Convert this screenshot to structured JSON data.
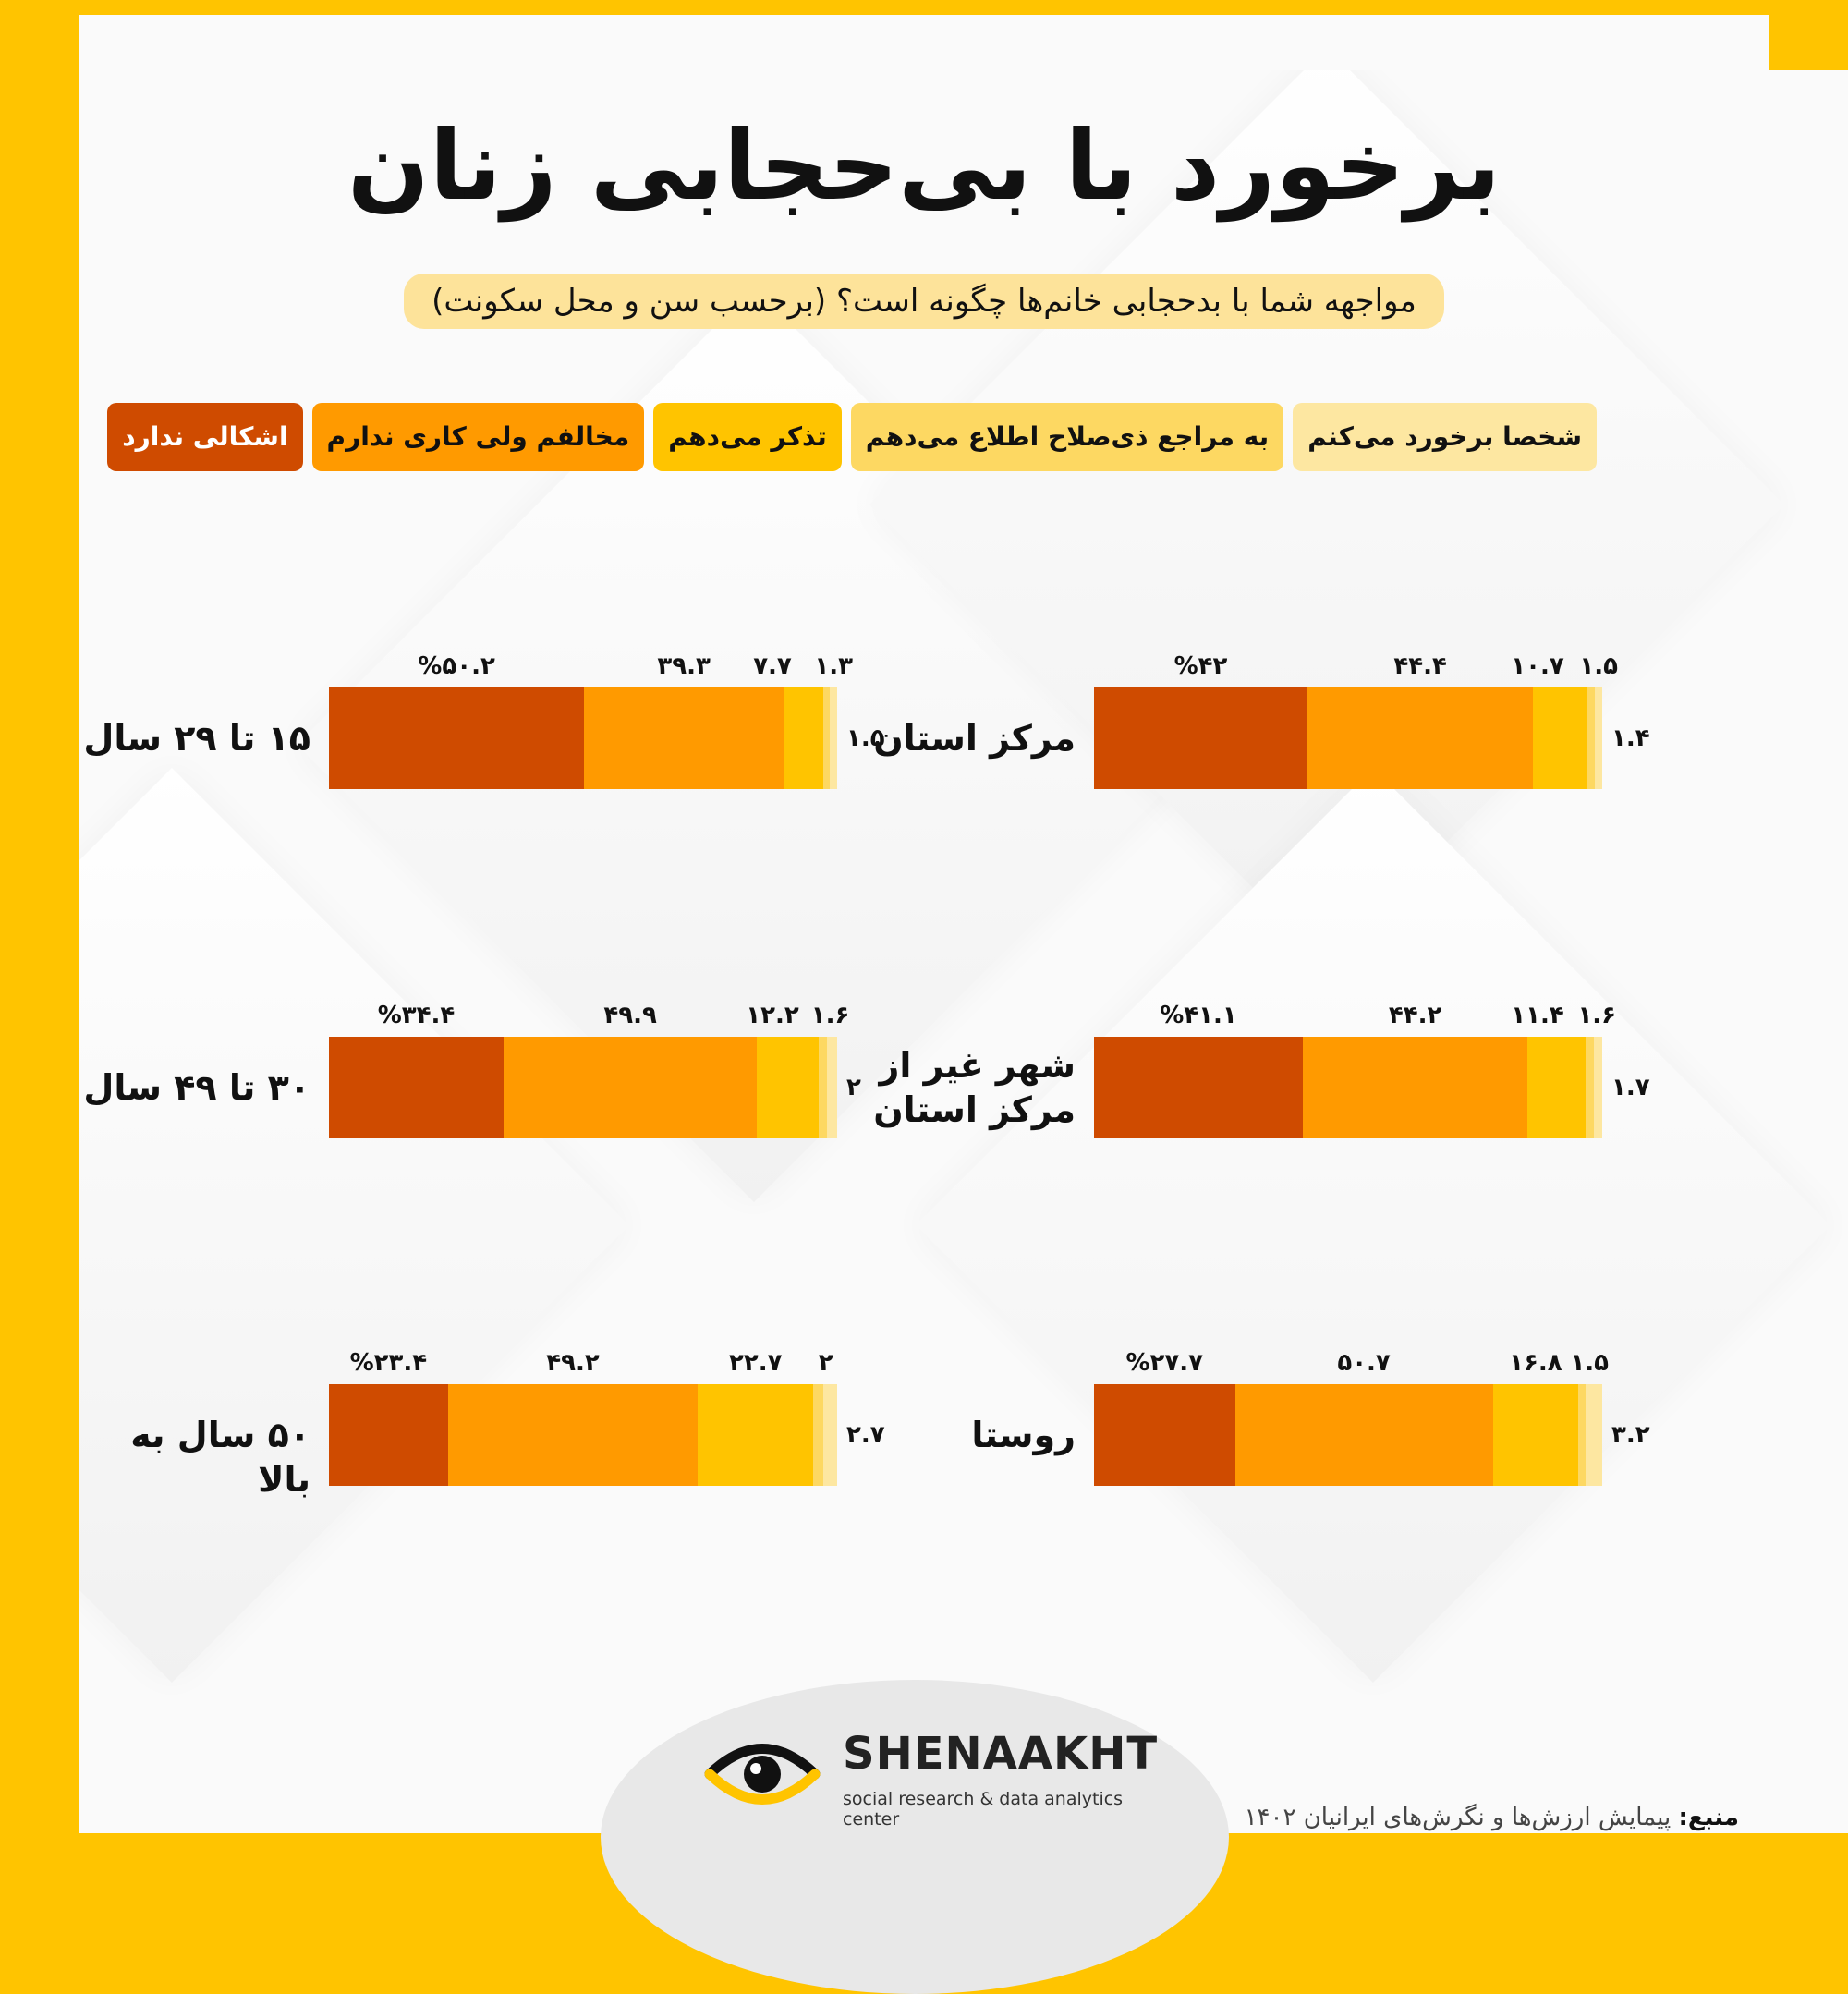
{
  "title": "برخورد با بی‌حجابی زنان",
  "subtitle": "مواجهه شما با بدحجابی خانم‌ها چگونه است؟ (برحسب سن و محل سکونت)",
  "colors": {
    "c0": "#fde7a1",
    "c1": "#fdd862",
    "c2": "#ffc400",
    "c3": "#ff9a00",
    "c4": "#cf4b00"
  },
  "legend": [
    {
      "label": "شخصا برخورد می‌کنم",
      "color": "#fde7a1"
    },
    {
      "label": "به مراجع ذی‌صلاح اطلاع می‌دهم",
      "color": "#fdd862"
    },
    {
      "label": "تذکر می‌دهم",
      "color": "#ffc400"
    },
    {
      "label": "مخالفم ولی کاری ندارم",
      "color": "#ff9a00"
    },
    {
      "label": "اشکالی ندارد",
      "color": "#cf4b00"
    }
  ],
  "chart_data": {
    "type": "bar",
    "stacked": true,
    "orientation": "horizontal",
    "series_names": [
      "اشکالی ندارد",
      "مخالفم ولی کاری ندارم",
      "تذکر می‌دهم",
      "به مراجع ذی‌صلاح اطلاع می‌دهم",
      "شخصا برخورد می‌کنم"
    ],
    "groups": [
      {
        "category": "مرکز استان",
        "values": [
          42,
          44.4,
          10.7,
          1.5,
          1.4
        ],
        "labels": [
          "%۴۲",
          "۴۴.۴",
          "۱۰.۷",
          "۱.۵",
          "۱.۴"
        ]
      },
      {
        "category": "شهر غیر از\nمرکز استان",
        "values": [
          41.1,
          44.2,
          11.4,
          1.6,
          1.7
        ],
        "labels": [
          "%۴۱.۱",
          "۴۴.۲",
          "۱۱.۴",
          "۱.۶",
          "۱.۷"
        ]
      },
      {
        "category": "روستا",
        "values": [
          27.7,
          50.7,
          16.8,
          1.5,
          3.2
        ],
        "labels": [
          "%۲۷.۷",
          "۵۰.۷",
          "۱۶.۸",
          "۱.۵",
          "۳.۲"
        ]
      },
      {
        "category": "۱۵ تا ۲۹ سال",
        "values": [
          50.2,
          39.3,
          7.7,
          1.3,
          1.5
        ],
        "labels": [
          "%۵۰.۲",
          "۳۹.۳",
          "۷.۷",
          "۱.۳",
          "۱.۵"
        ]
      },
      {
        "category": "۳۰ تا ۴۹ سال",
        "values": [
          34.4,
          49.9,
          12.2,
          1.6,
          2
        ],
        "labels": [
          "%۳۴.۴",
          "۴۹.۹",
          "۱۲.۲",
          "۱.۶",
          "۲"
        ]
      },
      {
        "category": "۵۰ سال به بالا",
        "values": [
          23.4,
          49.2,
          22.7,
          2,
          2.7
        ],
        "labels": [
          "%۲۳.۴",
          "۴۹.۲",
          "۲۲.۷",
          "۲",
          "۲.۷"
        ]
      }
    ]
  },
  "logo": {
    "name": "SHENAAKHT",
    "tagline": "social research & data analytics center",
    "icon": "eye-logo-icon"
  },
  "source": {
    "label": "منبع:",
    "text": "پیمایش ارزش‌ها و نگرش‌های ایرانیان ۱۴۰۲"
  }
}
